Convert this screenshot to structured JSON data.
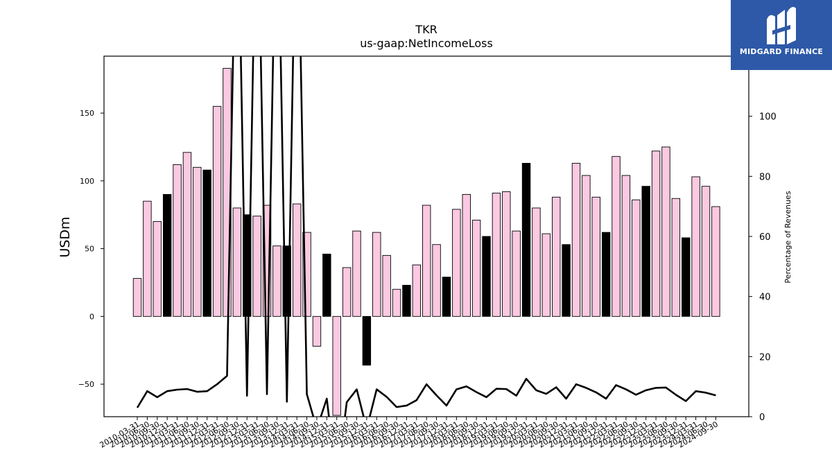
{
  "chart_data": {
    "type": "bar",
    "title": "TKR",
    "subtitle": "us-gaap:NetIncomeLoss",
    "ylabel": "USDm",
    "y2label": "Percentage of Revenues",
    "ylim": [
      -74,
      192
    ],
    "y2lim": [
      0,
      120
    ],
    "yticks": [
      -50,
      0,
      50,
      100,
      150
    ],
    "y2ticks": [
      0,
      20,
      40,
      60,
      80,
      100
    ],
    "categories": [
      "2010-03-31",
      "2010-06-30",
      "2010-09-30",
      "2010-12-31",
      "2011-03-31",
      "2011-06-30",
      "2011-09-30",
      "2011-12-31",
      "2012-03-31",
      "2012-06-30",
      "2012-09-30",
      "2012-12-31",
      "2013-03-31",
      "2013-06-30",
      "2013-09-30",
      "2013-12-31",
      "2014-03-31",
      "2014-06-30",
      "2014-09-30",
      "2014-12-31",
      "2015-03-31",
      "2015-06-30",
      "2015-09-30",
      "2015-12-31",
      "2016-03-31",
      "2016-06-30",
      "2016-09-30",
      "2016-12-31",
      "2017-03-31",
      "2017-06-30",
      "2017-09-30",
      "2017-12-31",
      "2018-03-31",
      "2018-06-30",
      "2018-09-30",
      "2018-12-31",
      "2019-03-31",
      "2019-06-30",
      "2019-09-30",
      "2019-12-31",
      "2020-03-31",
      "2020-06-30",
      "2020-09-30",
      "2020-12-31",
      "2021-03-31",
      "2021-06-30",
      "2021-09-30",
      "2021-12-31",
      "2022-03-31",
      "2022-06-30",
      "2022-09-30",
      "2022-12-31",
      "2023-03-31",
      "2023-06-30",
      "2023-09-30",
      "2023-12-31",
      "2024-03-31",
      "2024-06-30",
      "2024-09-30"
    ],
    "series": [
      {
        "values": [
          28,
          85,
          70,
          90,
          112,
          121,
          110,
          108,
          155,
          183,
          80,
          75,
          74,
          82,
          52,
          52,
          83,
          62,
          -22,
          46,
          -73,
          36,
          63,
          -36,
          62,
          45,
          20,
          23,
          38,
          82,
          53,
          29,
          79,
          90,
          71,
          59,
          91,
          92,
          63,
          113,
          80,
          61,
          88,
          53,
          113,
          104,
          88,
          62,
          118,
          104,
          86,
          96,
          122,
          125,
          87,
          58,
          103,
          96,
          81
        ]
      },
      {
        "values": [
          3,
          8.5,
          6.5,
          8.5,
          9,
          9.2,
          8.3,
          8.5,
          10.8,
          13.6,
          190,
          7,
          190,
          7.5,
          190,
          5,
          190,
          7.5,
          -4,
          6,
          -22,
          4.8,
          9.1,
          -4,
          9.1,
          6.6,
          3.2,
          3.7,
          5.5,
          10.8,
          7.1,
          3.7,
          9.1,
          10.1,
          8.2,
          6.5,
          9.3,
          9.2,
          7,
          12.6,
          8.8,
          7.6,
          9.8,
          6,
          10.8,
          9.6,
          8.1,
          6,
          10.5,
          9.1,
          7.3,
          8.8,
          9.6,
          9.7,
          7.3,
          5.2,
          8.5,
          8,
          7.1
        ]
      }
    ],
    "bar_colors": {
      "normal": "#fbc9e1",
      "highlight": "#000000"
    },
    "highlight_indices": [
      3,
      7,
      11,
      15,
      19,
      23,
      27,
      31,
      35,
      39,
      43,
      47,
      51,
      55
    ]
  },
  "watermark": {
    "text": "MIDGARD FINANCE",
    "background": "#2d59a8"
  }
}
